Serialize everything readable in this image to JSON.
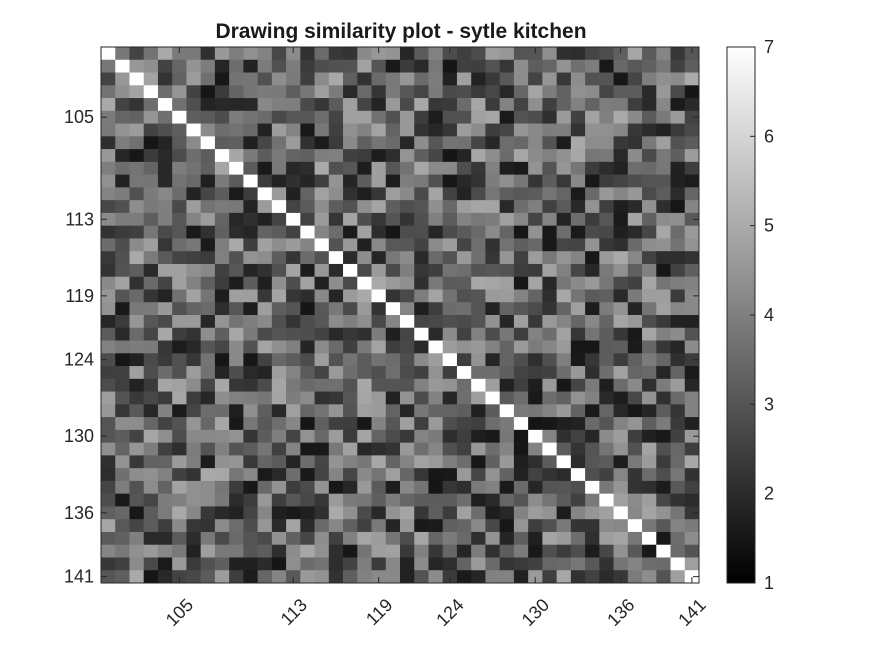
{
  "chart_data": {
    "type": "heatmap",
    "title": "Drawing similarity plot - sytle kitchen",
    "xlabel": "",
    "ylabel": "",
    "row_start": 100,
    "row_end": 141,
    "x_tick_labels": [
      "105",
      "113",
      "119",
      "124",
      "130",
      "136",
      "141"
    ],
    "y_tick_labels": [
      "105",
      "113",
      "119",
      "124",
      "130",
      "136",
      "141"
    ],
    "colormap": "gray",
    "clim": [
      1,
      7
    ],
    "colorbar_ticks": [
      "1",
      "2",
      "3",
      "4",
      "5",
      "6",
      "7"
    ],
    "diagonal_value": 7,
    "grid": false,
    "colorbar_placement": "right"
  }
}
